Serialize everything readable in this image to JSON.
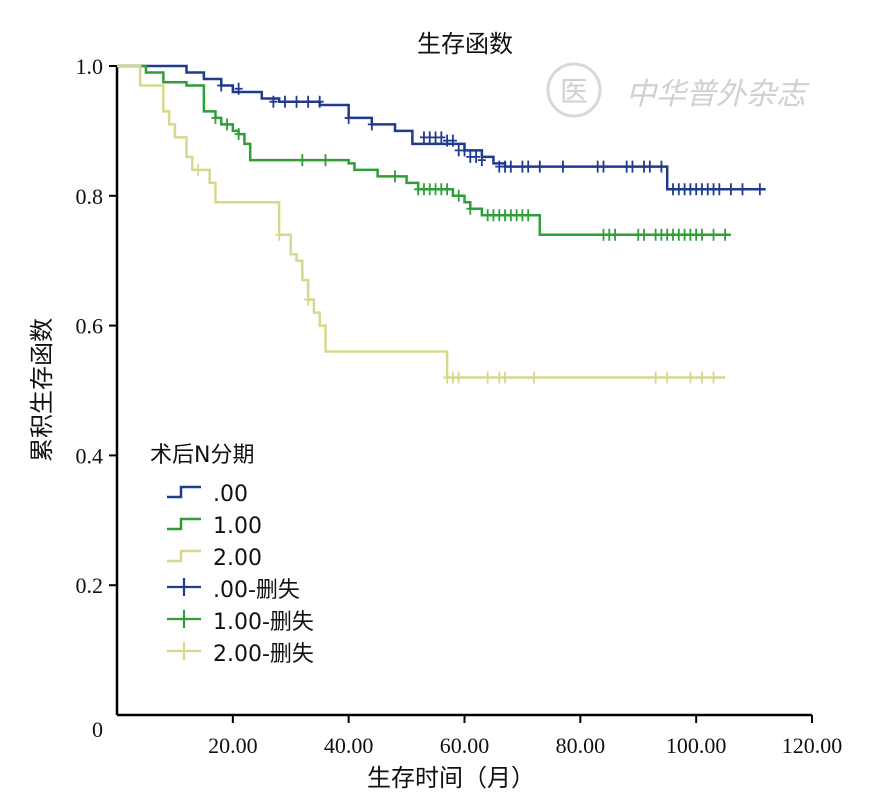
{
  "chart_data": {
    "type": "line",
    "step": true,
    "title": "生存函数",
    "xlabel": "生存时间（月）",
    "ylabel": "累积生存函数",
    "xlim": [
      0,
      120
    ],
    "ylim": [
      0,
      1.0
    ],
    "x_ticks": [
      20,
      40,
      60,
      80,
      100,
      120
    ],
    "x_tick_labels": [
      "20.00",
      "40.00",
      "60.00",
      "80.00",
      "100.00",
      "120.00"
    ],
    "y_ticks": [
      0,
      0.2,
      0.4,
      0.6,
      0.8,
      1.0
    ],
    "y_tick_labels": [
      "0",
      "0.2",
      "0.4",
      "0.6",
      "0.8",
      "1.0"
    ],
    "legend_title": "术后N分期",
    "legend_position": "lower-left",
    "grid": false,
    "series": [
      {
        "name": ".00",
        "color": "#1f3a8f",
        "censor_label": ".00-删失",
        "steps": [
          [
            0,
            1.0
          ],
          [
            12,
            0.99
          ],
          [
            15,
            0.98
          ],
          [
            18,
            0.97
          ],
          [
            20,
            0.96
          ],
          [
            25,
            0.95
          ],
          [
            28,
            0.945
          ],
          [
            35,
            0.94
          ],
          [
            40,
            0.92
          ],
          [
            44,
            0.91
          ],
          [
            48,
            0.9
          ],
          [
            51,
            0.88
          ],
          [
            56,
            0.88
          ],
          [
            60,
            0.87
          ],
          [
            63,
            0.86
          ],
          [
            65,
            0.85
          ],
          [
            67,
            0.845
          ],
          [
            94,
            0.845
          ],
          [
            95,
            0.81
          ],
          [
            112,
            0.81
          ]
        ],
        "censored": [
          [
            18,
            0.97
          ],
          [
            21,
            0.965
          ],
          [
            27,
            0.945
          ],
          [
            29,
            0.945
          ],
          [
            31,
            0.945
          ],
          [
            33,
            0.945
          ],
          [
            35,
            0.945
          ],
          [
            40,
            0.92
          ],
          [
            44,
            0.91
          ],
          [
            53,
            0.89
          ],
          [
            54,
            0.89
          ],
          [
            55,
            0.89
          ],
          [
            56,
            0.89
          ],
          [
            57,
            0.885
          ],
          [
            58,
            0.885
          ],
          [
            59,
            0.87
          ],
          [
            60,
            0.87
          ],
          [
            61,
            0.86
          ],
          [
            62,
            0.86
          ],
          [
            63,
            0.855
          ],
          [
            66,
            0.845
          ],
          [
            67,
            0.845
          ],
          [
            68,
            0.845
          ],
          [
            70,
            0.845
          ],
          [
            71,
            0.845
          ],
          [
            73,
            0.845
          ],
          [
            77,
            0.845
          ],
          [
            83,
            0.845
          ],
          [
            84,
            0.845
          ],
          [
            88,
            0.845
          ],
          [
            89,
            0.845
          ],
          [
            91,
            0.845
          ],
          [
            92,
            0.845
          ],
          [
            94,
            0.845
          ],
          [
            96,
            0.81
          ],
          [
            97,
            0.81
          ],
          [
            98,
            0.81
          ],
          [
            99,
            0.81
          ],
          [
            100,
            0.81
          ],
          [
            101,
            0.81
          ],
          [
            102,
            0.81
          ],
          [
            103,
            0.81
          ],
          [
            104,
            0.81
          ],
          [
            106,
            0.81
          ],
          [
            108,
            0.81
          ],
          [
            111,
            0.81
          ]
        ]
      },
      {
        "name": "1.00",
        "color": "#2f9e38",
        "censor_label": "1.00-删失",
        "steps": [
          [
            0,
            1.0
          ],
          [
            5,
            0.99
          ],
          [
            8,
            0.975
          ],
          [
            12,
            0.97
          ],
          [
            15,
            0.93
          ],
          [
            17,
            0.92
          ],
          [
            18,
            0.91
          ],
          [
            20,
            0.9
          ],
          [
            21,
            0.895
          ],
          [
            22,
            0.88
          ],
          [
            23,
            0.855
          ],
          [
            40,
            0.85
          ],
          [
            41,
            0.84
          ],
          [
            45,
            0.83
          ],
          [
            50,
            0.82
          ],
          [
            52,
            0.81
          ],
          [
            58,
            0.8
          ],
          [
            60,
            0.79
          ],
          [
            61,
            0.78
          ],
          [
            63,
            0.77
          ],
          [
            73,
            0.74
          ],
          [
            106,
            0.74
          ]
        ],
        "censored": [
          [
            17,
            0.92
          ],
          [
            19,
            0.91
          ],
          [
            21,
            0.895
          ],
          [
            32,
            0.855
          ],
          [
            36,
            0.855
          ],
          [
            48,
            0.83
          ],
          [
            52,
            0.81
          ],
          [
            53,
            0.81
          ],
          [
            54,
            0.81
          ],
          [
            55,
            0.81
          ],
          [
            56,
            0.81
          ],
          [
            57,
            0.81
          ],
          [
            59,
            0.8
          ],
          [
            61,
            0.78
          ],
          [
            64,
            0.77
          ],
          [
            65,
            0.77
          ],
          [
            66,
            0.77
          ],
          [
            67,
            0.77
          ],
          [
            68,
            0.77
          ],
          [
            69,
            0.77
          ],
          [
            70,
            0.77
          ],
          [
            71,
            0.77
          ],
          [
            84,
            0.74
          ],
          [
            85,
            0.74
          ],
          [
            86,
            0.74
          ],
          [
            90,
            0.74
          ],
          [
            91,
            0.74
          ],
          [
            93,
            0.74
          ],
          [
            94,
            0.74
          ],
          [
            95,
            0.74
          ],
          [
            96,
            0.74
          ],
          [
            97,
            0.74
          ],
          [
            98,
            0.74
          ],
          [
            99,
            0.74
          ],
          [
            100,
            0.74
          ],
          [
            101,
            0.74
          ],
          [
            103,
            0.74
          ],
          [
            105,
            0.74
          ]
        ]
      },
      {
        "name": "2.00",
        "color": "#d7d78e",
        "censor_label": "2.00-删失",
        "steps": [
          [
            0,
            1.0
          ],
          [
            4,
            0.97
          ],
          [
            8,
            0.93
          ],
          [
            9,
            0.91
          ],
          [
            10,
            0.89
          ],
          [
            12,
            0.86
          ],
          [
            13,
            0.84
          ],
          [
            15,
            0.84
          ],
          [
            16,
            0.82
          ],
          [
            17,
            0.79
          ],
          [
            18,
            0.79
          ],
          [
            28,
            0.74
          ],
          [
            30,
            0.71
          ],
          [
            31,
            0.7
          ],
          [
            32,
            0.67
          ],
          [
            33,
            0.64
          ],
          [
            34,
            0.62
          ],
          [
            35,
            0.6
          ],
          [
            36,
            0.56
          ],
          [
            57,
            0.52
          ],
          [
            105,
            0.52
          ]
        ],
        "censored": [
          [
            14,
            0.84
          ],
          [
            28,
            0.74
          ],
          [
            33,
            0.64
          ],
          [
            57,
            0.52
          ],
          [
            58,
            0.52
          ],
          [
            59,
            0.52
          ],
          [
            64,
            0.52
          ],
          [
            66,
            0.52
          ],
          [
            67,
            0.52
          ],
          [
            72,
            0.52
          ],
          [
            93,
            0.52
          ],
          [
            95,
            0.52
          ],
          [
            99,
            0.52
          ],
          [
            101,
            0.52
          ],
          [
            103,
            0.52
          ]
        ]
      }
    ]
  },
  "watermark": {
    "text": "中华普外杂志",
    "seal_glyph": "医"
  }
}
